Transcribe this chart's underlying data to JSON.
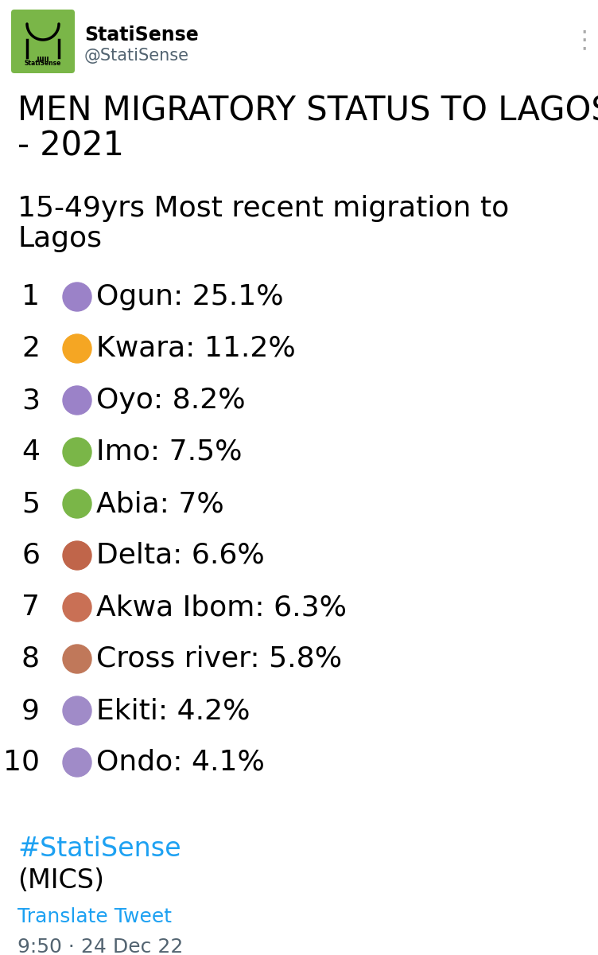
{
  "title_line1": "MEN MIGRATORY STATUS TO LAGOS",
  "title_line2": "- 2021",
  "subtitle_line1": "15-49yrs Most recent migration to",
  "subtitle_line2": "Lagos",
  "items": [
    {
      "rank": "1",
      "name": "Ogun: 25.1%",
      "color": "#9b82c8"
    },
    {
      "rank": "2",
      "name": "Kwara: 11.2%",
      "color": "#f5a623"
    },
    {
      "rank": "3",
      "name": "Oyo: 8.2%",
      "color": "#9b82c8"
    },
    {
      "rank": "4",
      "name": "Imo: 7.5%",
      "color": "#7ab648"
    },
    {
      "rank": "5",
      "name": "Abia: 7%",
      "color": "#7ab648"
    },
    {
      "rank": "6",
      "name": "Delta: 6.6%",
      "color": "#c0654a"
    },
    {
      "rank": "7",
      "name": "Akwa Ibom: 6.3%",
      "color": "#c97055"
    },
    {
      "rank": "8",
      "name": "Cross river: 5.8%",
      "color": "#c0785a"
    },
    {
      "rank": "9",
      "name": "Ekiti: 4.2%",
      "color": "#a08bc8"
    },
    {
      "rank": "10",
      "name": "Ondo: 4.1%",
      "color": "#a08bc8"
    }
  ],
  "hashtag": "#StatiSense",
  "source": "(MICS)",
  "translate": "Translate Tweet",
  "timestamp": "9:50 · 24 Dec 22",
  "bg_color": "#ffffff",
  "text_color": "#000000",
  "hashtag_color": "#1da1f2",
  "translate_color": "#1da1f2",
  "timestamp_color": "#536471",
  "handle_color": "#536471",
  "title_fontsize": 30,
  "subtitle_fontsize": 26,
  "item_fontsize": 26,
  "footer_fontsize": 24,
  "small_fontsize": 18,
  "header_name": "StatiSense",
  "header_handle": "@StatiSense",
  "logo_color": "#7ab648",
  "dot_color_menu": "#aaaaaa"
}
